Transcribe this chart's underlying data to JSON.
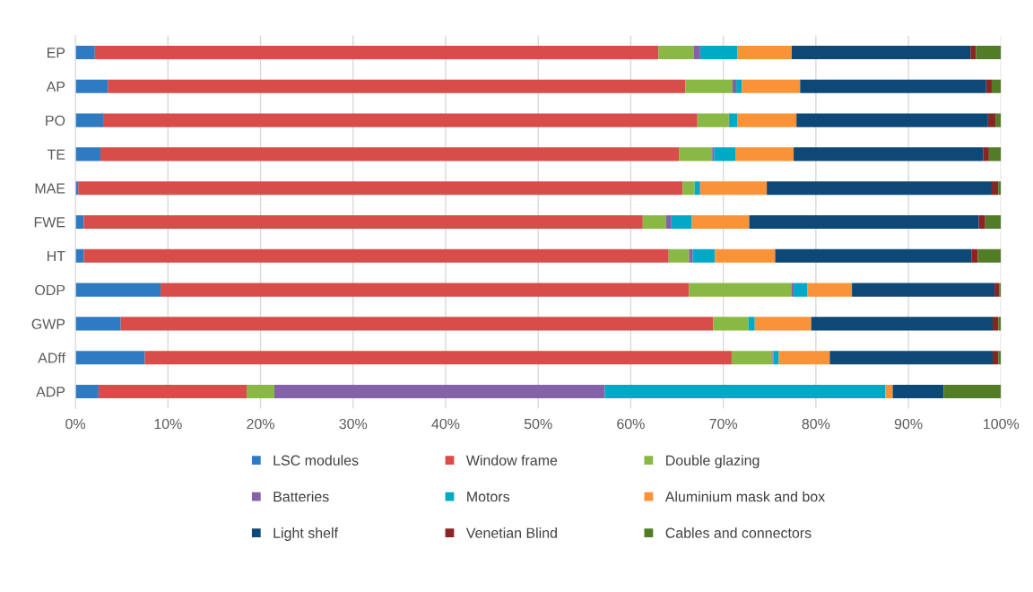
{
  "chart_data": {
    "type": "bar",
    "orientation": "horizontal",
    "stacked": true,
    "categories": [
      "EP",
      "AP",
      "PO",
      "TE",
      "MAE",
      "FWE",
      "HT",
      "ODP",
      "GWP",
      "ADff",
      "ADP"
    ],
    "series": [
      {
        "name": "LSC modules",
        "color": "#2e7bc4",
        "values": [
          2.1,
          3.5,
          3.0,
          2.7,
          0.3,
          0.9,
          0.9,
          9.2,
          4.9,
          7.5,
          2.5
        ]
      },
      {
        "name": "Window frame",
        "color": "#d84c49",
        "values": [
          60.9,
          62.4,
          64.2,
          62.5,
          65.3,
          60.4,
          63.2,
          57.1,
          64.0,
          63.4,
          16.0
        ]
      },
      {
        "name": "Double glazing",
        "color": "#8ab844",
        "values": [
          3.8,
          5.1,
          3.4,
          3.6,
          1.3,
          2.5,
          2.2,
          11.1,
          3.8,
          4.4,
          3.0
        ]
      },
      {
        "name": "Batteries",
        "color": "#8462a8",
        "values": [
          0.7,
          0.4,
          0.1,
          0.2,
          0.0,
          0.6,
          0.4,
          0.2,
          0.0,
          0.1,
          35.7
        ]
      },
      {
        "name": "Motors",
        "color": "#00a9c6",
        "values": [
          4.0,
          0.6,
          0.8,
          2.3,
          0.6,
          2.2,
          2.4,
          1.5,
          0.7,
          0.6,
          30.3
        ]
      },
      {
        "name": "Aluminium mask and box",
        "color": "#fa9338",
        "values": [
          5.9,
          6.3,
          6.4,
          6.3,
          7.2,
          6.2,
          6.5,
          4.8,
          6.1,
          5.5,
          0.8
        ]
      },
      {
        "name": "Light shelf",
        "color": "#0d4877",
        "values": [
          19.3,
          20.1,
          20.7,
          20.5,
          24.3,
          24.8,
          21.2,
          15.4,
          19.6,
          17.6,
          5.5
        ]
      },
      {
        "name": "Venetian Blind",
        "color": "#8b2525",
        "values": [
          0.6,
          0.6,
          0.8,
          0.6,
          0.7,
          0.7,
          0.7,
          0.5,
          0.6,
          0.6,
          0.0
        ]
      },
      {
        "name": "Cables and connectors",
        "color": "#537c26",
        "values": [
          2.7,
          1.0,
          0.6,
          1.3,
          0.3,
          1.7,
          2.5,
          0.2,
          0.3,
          0.3,
          6.2
        ]
      }
    ],
    "xlim": [
      0,
      100
    ],
    "xticks": [
      {
        "value": 0,
        "label": "0%"
      },
      {
        "value": 10,
        "label": "10%"
      },
      {
        "value": 20,
        "label": "20%"
      },
      {
        "value": 30,
        "label": "30%"
      },
      {
        "value": 40,
        "label": "40%"
      },
      {
        "value": 50,
        "label": "50%"
      },
      {
        "value": 60,
        "label": "60%"
      },
      {
        "value": 70,
        "label": "70%"
      },
      {
        "value": 80,
        "label": "80%"
      },
      {
        "value": 90,
        "label": "90%"
      },
      {
        "value": 100,
        "label": "100%"
      }
    ],
    "grid": "x",
    "legend": "bottom"
  }
}
